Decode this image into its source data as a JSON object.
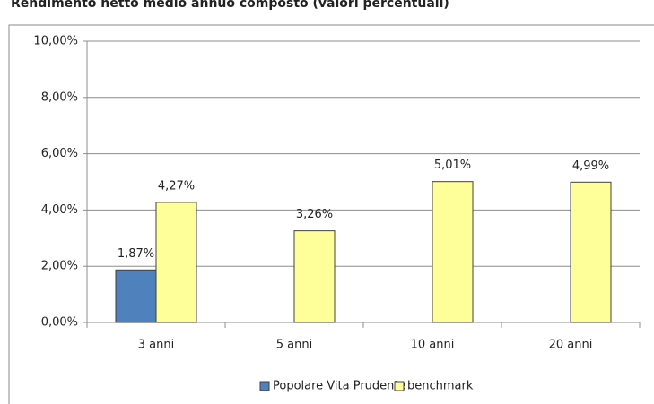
{
  "chart_data": {
    "type": "bar",
    "title": "Rendimento netto medio annuo composto (valori percentuali)",
    "categories": [
      "3 anni",
      "5 anni",
      "10 anni",
      "20 anni"
    ],
    "series": [
      {
        "name": "Popolare Vita Prudente",
        "color": "#4f81bd",
        "values": [
          1.87,
          null,
          null,
          null
        ],
        "value_labels": [
          "1,87%",
          null,
          null,
          null
        ]
      },
      {
        "name": "benchmark",
        "color": "#ffff99",
        "values": [
          4.27,
          3.26,
          5.01,
          4.99
        ],
        "value_labels": [
          "4,27%",
          "3,26%",
          "5,01%",
          "4,99%"
        ]
      }
    ],
    "ylim": [
      0,
      10
    ],
    "yticks": [
      {
        "value": 0,
        "label": "0,00%"
      },
      {
        "value": 2,
        "label": "2,00%"
      },
      {
        "value": 4,
        "label": "4,00%"
      },
      {
        "value": 6,
        "label": "6,00%"
      },
      {
        "value": 8,
        "label": "8,00%"
      },
      {
        "value": 10,
        "label": "10,00%"
      }
    ],
    "grid": true,
    "legend": "bottom"
  }
}
